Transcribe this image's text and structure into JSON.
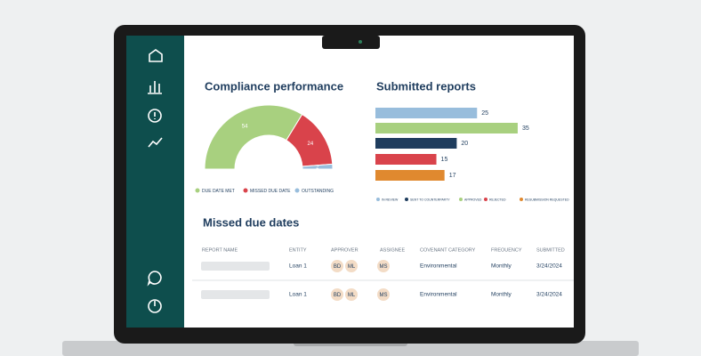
{
  "compliance_performance": {
    "type": "donut",
    "title": "Compliance performance",
    "segments": [
      {
        "name": "DUE DATE MET",
        "value": 54,
        "color": "#a8d07f"
      },
      {
        "name": "MISSED DUE DATE",
        "value": 24,
        "color": "#d9434b"
      },
      {
        "name": "OUTSTANDING",
        "value": 2,
        "color": "#98bddc"
      }
    ]
  },
  "submitted_reports": {
    "type": "bar",
    "title": "Submitted reports",
    "bars": [
      {
        "value": 25,
        "color": "#98bddc"
      },
      {
        "value": 35,
        "color": "#a8d07f"
      },
      {
        "value": 20,
        "color": "#1f3d5e"
      },
      {
        "value": 15,
        "color": "#d9434b"
      },
      {
        "value": 17,
        "color": "#e0892f"
      }
    ],
    "legend": [
      {
        "name": "IN REVIEW",
        "color": "#98bddc"
      },
      {
        "name": "SENT TO COUNTERPARTY",
        "color": "#1f3d5e"
      },
      {
        "name": "APPROVED",
        "color": "#a8d07f"
      },
      {
        "name": "REJECTED",
        "color": "#d9434b"
      },
      {
        "name": "RESUBMISSION REQUESTED",
        "color": "#e0892f"
      }
    ]
  },
  "missed_due_dates": {
    "title": "Missed due dates",
    "columns": [
      "REPORT NAME",
      "ENTITY",
      "APPROVER",
      "ASSIGNEE",
      "COVENANT CATEGORY",
      "FREQUENCY",
      "SUBMITTED"
    ],
    "rows": [
      {
        "entity": "Loan 1",
        "approver": [
          "BD",
          "ML"
        ],
        "assignee": [
          "MS"
        ],
        "category": "Environmental",
        "frequency": "Monthly",
        "submitted": "3/24/2024"
      },
      {
        "entity": "Loan 1",
        "approver": [
          "BD",
          "ML"
        ],
        "assignee": [
          "MS"
        ],
        "category": "Environmental",
        "frequency": "Monthly",
        "submitted": "3/24/2024"
      }
    ]
  }
}
